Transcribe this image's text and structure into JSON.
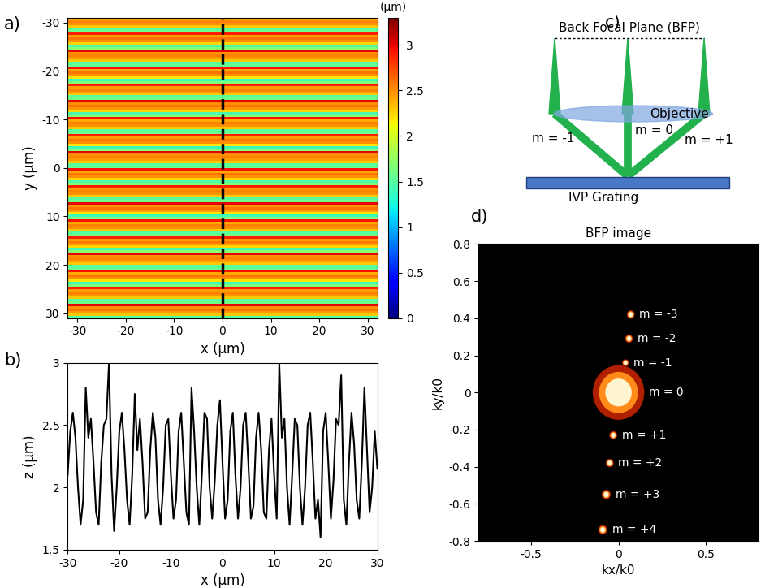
{
  "chart_data": [
    {
      "type": "heatmap",
      "panel_label": "a)",
      "x_label": "x (μm)",
      "y_label": "y (μm)",
      "xlim": [
        -32,
        32
      ],
      "ylim": [
        31,
        -31
      ],
      "xticks": [
        -30,
        -20,
        -10,
        0,
        10,
        20,
        30
      ],
      "yticks": [
        -30,
        -20,
        -10,
        0,
        10,
        20,
        30
      ],
      "cells": [
        [
          2.4
        ],
        [
          2.55
        ],
        [
          2.5
        ],
        [
          2.3
        ],
        [
          1.5
        ],
        [
          1.6
        ],
        [
          2.9
        ],
        [
          2.45
        ],
        [
          2.6
        ],
        [
          2.5
        ],
        [
          2.25
        ],
        [
          1.45
        ],
        [
          1.7
        ],
        [
          3.0
        ],
        [
          2.5
        ],
        [
          2.55
        ],
        [
          2.45
        ],
        [
          2.3
        ],
        [
          1.5
        ],
        [
          1.55
        ],
        [
          2.95
        ],
        [
          2.4
        ],
        [
          2.6
        ],
        [
          2.5
        ],
        [
          2.2
        ],
        [
          1.4
        ],
        [
          1.65
        ],
        [
          2.9
        ],
        [
          2.45
        ],
        [
          2.55
        ],
        [
          2.5
        ],
        [
          2.3
        ],
        [
          1.5
        ],
        [
          1.6
        ],
        [
          3.0
        ],
        [
          2.5
        ],
        [
          2.6
        ],
        [
          2.45
        ],
        [
          2.25
        ],
        [
          1.45
        ],
        [
          1.7
        ],
        [
          2.95
        ],
        [
          2.4
        ],
        [
          2.55
        ],
        [
          2.5
        ],
        [
          2.3
        ],
        [
          1.5
        ],
        [
          1.6
        ],
        [
          2.9
        ],
        [
          2.45
        ],
        [
          2.6
        ],
        [
          2.5
        ],
        [
          2.2
        ],
        [
          1.4
        ],
        [
          1.65
        ],
        [
          3.0
        ],
        [
          2.5
        ],
        [
          2.55
        ],
        [
          2.45
        ],
        [
          2.3
        ],
        [
          1.5
        ],
        [
          1.55
        ],
        [
          2.95
        ],
        [
          2.4
        ],
        [
          2.6
        ],
        [
          2.5
        ],
        [
          2.25
        ],
        [
          1.45
        ],
        [
          1.7
        ],
        [
          2.9
        ],
        [
          2.45
        ],
        [
          2.55
        ],
        [
          2.5
        ],
        [
          2.3
        ],
        [
          1.5
        ],
        [
          1.6
        ],
        [
          3.0
        ],
        [
          2.5
        ],
        [
          2.6
        ],
        [
          2.45
        ],
        [
          2.2
        ],
        [
          1.4
        ],
        [
          1.65
        ],
        [
          2.95
        ],
        [
          2.4
        ],
        [
          2.55
        ],
        [
          2.5
        ],
        [
          2.3
        ],
        [
          1.5
        ],
        [
          1.6
        ],
        [
          2.9
        ],
        [
          2.45
        ],
        [
          2.6
        ],
        [
          2.5
        ],
        [
          2.25
        ],
        [
          1.45
        ],
        [
          1.7
        ],
        [
          3.0
        ],
        [
          2.5
        ],
        [
          2.55
        ],
        [
          2.45
        ],
        [
          2.3
        ],
        [
          1.5
        ],
        [
          1.55
        ],
        [
          2.95
        ],
        [
          2.4
        ],
        [
          2.6
        ],
        [
          2.5
        ],
        [
          2.2
        ],
        [
          1.4
        ],
        [
          1.65
        ],
        [
          2.9
        ],
        [
          2.45
        ],
        [
          2.55
        ],
        [
          2.5
        ],
        [
          2.3
        ],
        [
          1.5
        ],
        [
          1.6
        ],
        [
          3.0
        ],
        [
          2.5
        ],
        [
          2.6
        ],
        [
          2.45
        ],
        [
          2.3
        ],
        [
          1.5
        ]
      ],
      "colorbar": {
        "label": "(μm)",
        "range": [
          0,
          3.3
        ],
        "ticks": [
          0,
          0.5,
          1,
          1.5,
          2,
          2.5,
          3
        ]
      },
      "cut_line": {
        "x": 0,
        "color": "black",
        "line_style": "dashed"
      }
    },
    {
      "type": "line",
      "panel_label": "b)",
      "x_label": "x (μm)",
      "y_label": "z (μm)",
      "xlim": [
        -30,
        30
      ],
      "ylim": [
        1.5,
        3
      ],
      "xticks": [
        -30,
        -20,
        -10,
        0,
        10,
        20,
        30
      ],
      "yticks": [
        1.5,
        2,
        2.5,
        3
      ],
      "color": "black",
      "x": [
        -30,
        -29.5,
        -29,
        -28.5,
        -28,
        -27.5,
        -27,
        -26.5,
        -26,
        -25.5,
        -25,
        -24.5,
        -24,
        -23.5,
        -23,
        -22.5,
        -22,
        -21.5,
        -21,
        -20.5,
        -20,
        -19.5,
        -19,
        -18.5,
        -18,
        -17.5,
        -17,
        -16.5,
        -16,
        -15.5,
        -15,
        -14.5,
        -14,
        -13.5,
        -13,
        -12.5,
        -12,
        -11.5,
        -11,
        -10.5,
        -10,
        -9.5,
        -9,
        -8.5,
        -8,
        -7.5,
        -7,
        -6.5,
        -6,
        -5.5,
        -5,
        -4.5,
        -4,
        -3.5,
        -3,
        -2.5,
        -2,
        -1.5,
        -1,
        -0.5,
        0,
        0.5,
        1,
        1.5,
        2,
        2.5,
        3,
        3.5,
        4,
        4.5,
        5,
        5.5,
        6,
        6.5,
        7,
        7.5,
        8,
        8.5,
        9,
        9.5,
        10,
        10.5,
        11,
        11.5,
        12,
        12.5,
        13,
        13.5,
        14,
        14.5,
        15,
        15.5,
        16,
        16.5,
        17,
        17.5,
        18,
        18.5,
        19,
        19.5,
        20,
        20.5,
        21,
        21.5,
        22,
        22.5,
        23,
        23.5,
        24,
        24.5,
        25,
        25.5,
        26,
        26.5,
        27,
        27.5,
        28,
        28.5,
        29,
        29.5,
        30
      ],
      "values": [
        2.1,
        2.45,
        2.6,
        2.4,
        2.0,
        1.7,
        1.9,
        2.8,
        2.4,
        2.55,
        2.2,
        1.8,
        1.7,
        2.2,
        2.5,
        2.55,
        3.0,
        2.1,
        1.65,
        2.0,
        2.45,
        2.6,
        2.3,
        1.9,
        1.7,
        2.1,
        2.75,
        2.3,
        2.55,
        2.2,
        1.75,
        1.8,
        2.3,
        2.6,
        2.4,
        1.9,
        1.7,
        2.0,
        2.5,
        2.55,
        2.1,
        1.75,
        1.9,
        2.45,
        2.6,
        2.2,
        1.8,
        1.7,
        2.8,
        2.45,
        2.0,
        1.7,
        2.1,
        2.6,
        2.55,
        2.0,
        1.75,
        2.05,
        2.5,
        2.7,
        2.2,
        1.75,
        1.9,
        2.45,
        2.6,
        2.1,
        1.75,
        2.0,
        2.5,
        2.6,
        2.2,
        1.75,
        1.85,
        2.4,
        2.6,
        2.3,
        1.8,
        1.75,
        2.3,
        2.55,
        2.1,
        1.75,
        3.0,
        2.4,
        2.55,
        2.0,
        1.7,
        2.1,
        2.55,
        2.5,
        2.0,
        1.7,
        2.0,
        2.5,
        2.6,
        2.2,
        1.75,
        1.9,
        1.6,
        2.45,
        2.6,
        2.2,
        1.75,
        2.05,
        2.55,
        2.5,
        2.9,
        1.9,
        1.7,
        2.2,
        2.6,
        2.35,
        1.9,
        1.75,
        2.2,
        2.8,
        2.3,
        1.8,
        2.0,
        2.45,
        2.15
      ]
    },
    {
      "type": "scatter",
      "panel_label": "d)",
      "title": "BFP image",
      "x_label": "kx/k0",
      "y_label": "ky/k0",
      "xlim": [
        -0.8,
        0.8
      ],
      "ylim": [
        -0.8,
        0.8
      ],
      "xticks": [
        -0.5,
        0,
        0.5
      ],
      "yticks": [
        -0.8,
        -0.6,
        -0.4,
        -0.2,
        0,
        0.2,
        0.4,
        0.6,
        0.8
      ],
      "points": [
        {
          "label": "m = -3",
          "x": 0.07,
          "y": 0.42,
          "size": 0.012
        },
        {
          "label": "m = -2",
          "x": 0.06,
          "y": 0.29,
          "size": 0.012
        },
        {
          "label": "m = -1",
          "x": 0.04,
          "y": 0.16,
          "size": 0.01
        },
        {
          "label": "m = 0",
          "x": 0,
          "y": 0,
          "size": 0.09
        },
        {
          "label": "m = +1",
          "x": -0.03,
          "y": -0.23,
          "size": 0.012
        },
        {
          "label": "m = +2",
          "x": -0.05,
          "y": -0.38,
          "size": 0.012
        },
        {
          "label": "m = +3",
          "x": -0.07,
          "y": -0.55,
          "size": 0.014
        },
        {
          "label": "m = +4",
          "x": -0.09,
          "y": -0.74,
          "size": 0.014
        }
      ]
    }
  ],
  "diagram": {
    "panel_label": "c)",
    "back_focal_plane": "Back Focal Plane (BFP)",
    "lens": "Objective",
    "orders": [
      "m = -1",
      "m = 0",
      "m = +1"
    ],
    "grating": "IVP Grating"
  }
}
